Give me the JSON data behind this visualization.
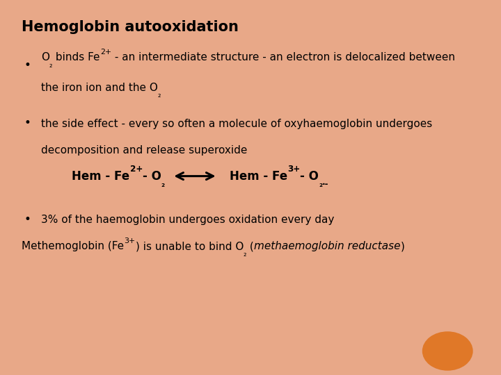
{
  "title": "Hemoglobin autooxidation",
  "title_fontsize": 15,
  "background_color": "#ffffff",
  "border_color": "#e8a888",
  "text_color": "#000000",
  "text_fontsize": 11,
  "equation_fontsize": 12,
  "orange_circle_color": "#e07828",
  "font_family": "DejaVu Sans",
  "bullet1_line1_a": "O",
  "bullet1_line1_b": "₂",
  "bullet1_line1_c": " binds Fe",
  "bullet1_line1_d": "2+",
  "bullet1_line1_e": " - an intermediate structure - an electron is delocalized between",
  "bullet1_line2": "the iron ion and the O",
  "bullet1_line2_sub": "₂",
  "bullet2_line1": "the side effect - every so often a molecule of oxyhaemoglobin undergoes",
  "bullet2_line2": "decomposition and release superoxide",
  "bullet3": "3% of the haemoglobin undergoes oxidation every day",
  "bottom_a": "Methemoglobin (Fe",
  "bottom_b": "3+",
  "bottom_c": ") is unable to bind O",
  "bottom_d": "₂",
  "bottom_e": " (",
  "bottom_f": "methaemoglobin reductase",
  "bottom_g": ")"
}
